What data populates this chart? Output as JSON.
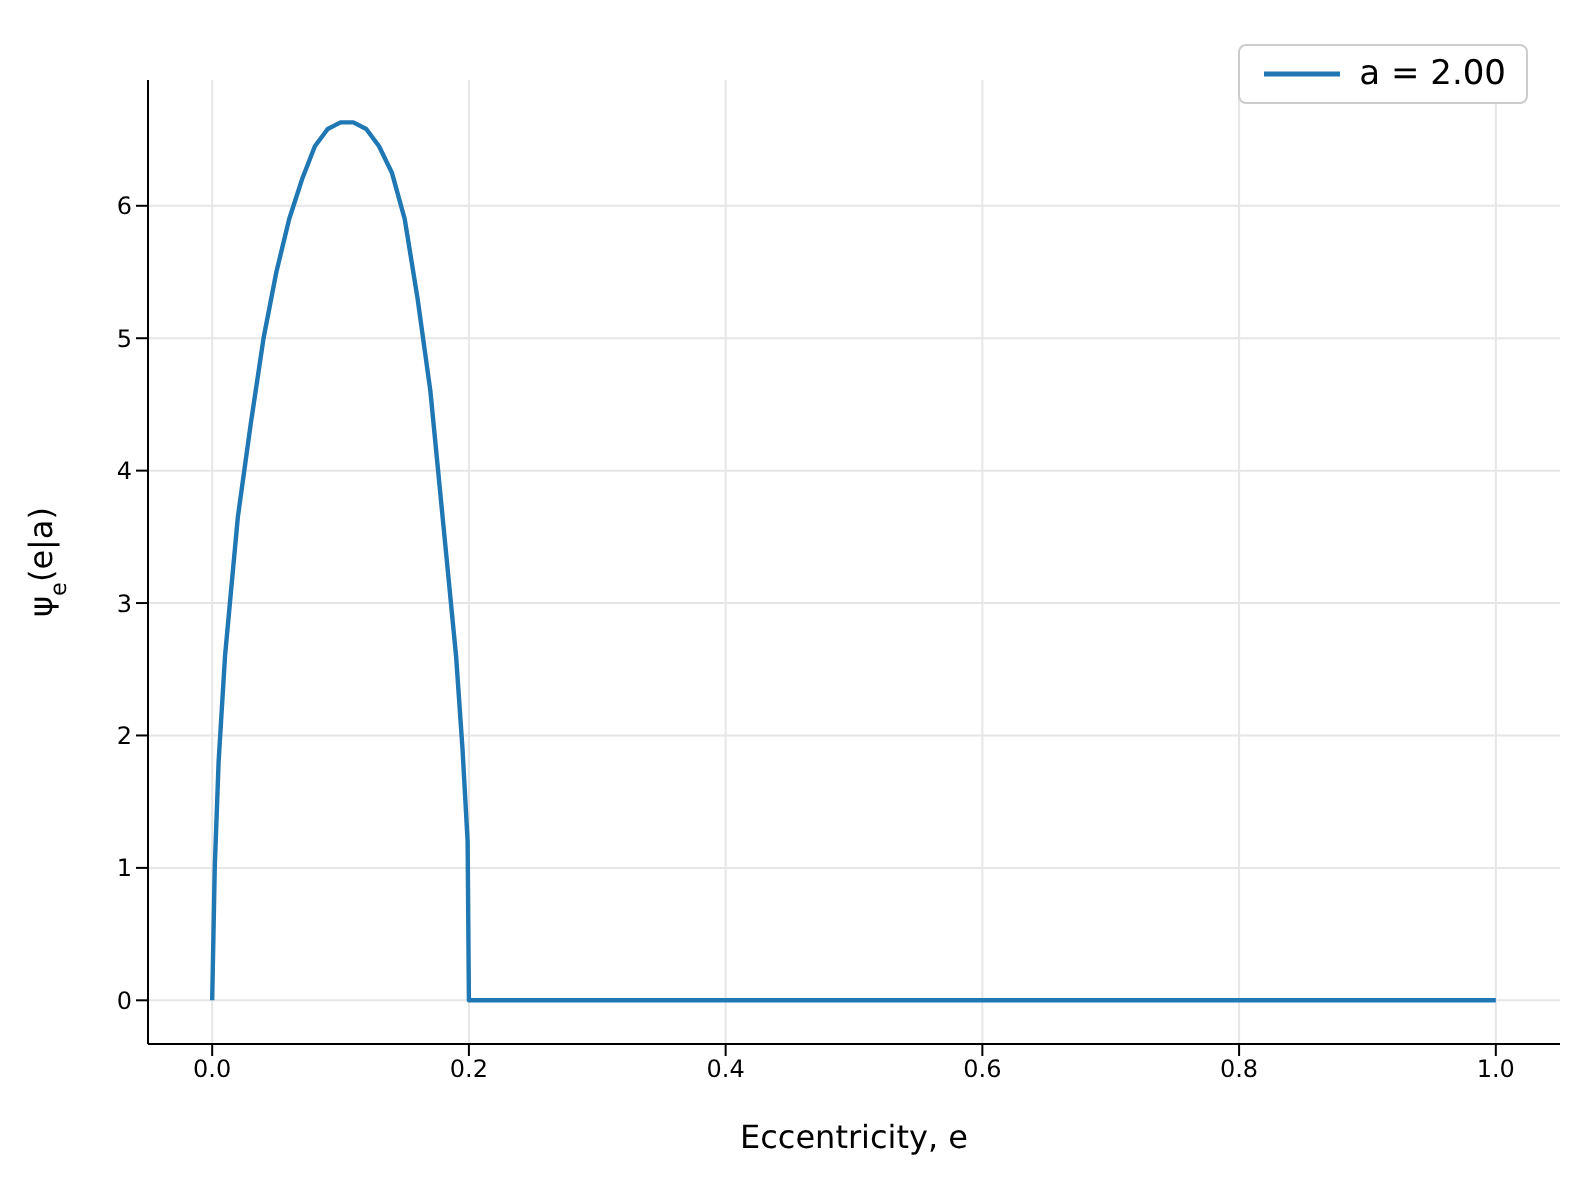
{
  "chart_data": {
    "type": "line",
    "xlabel": "Eccentricity, e",
    "ylabel": "ψ$_{e}$(e|a)",
    "xlim": [
      -0.05,
      1.05
    ],
    "ylim": [
      -0.33,
      6.95
    ],
    "xticks": [
      {
        "value": 0,
        "label": "0.0"
      },
      {
        "value": 0.2,
        "label": "0.2"
      },
      {
        "value": 0.4,
        "label": "0.4"
      },
      {
        "value": 0.6,
        "label": "0.6"
      },
      {
        "value": 0.8,
        "label": "0.8"
      },
      {
        "value": 1,
        "label": "1.0"
      }
    ],
    "yticks": [
      0,
      1,
      2,
      3,
      4,
      5,
      6
    ],
    "grid": true,
    "legend": "top right",
    "marker": "none",
    "line_style": "solid",
    "series": [
      {
        "name": "a = 2.00",
        "color": "#1f77b4",
        "x": [
          0,
          0.002,
          0.005,
          0.01,
          0.02,
          0.03,
          0.04,
          0.05,
          0.06,
          0.07,
          0.08,
          0.09,
          0.1,
          0.11,
          0.12,
          0.13,
          0.14,
          0.15,
          0.16,
          0.17,
          0.18,
          0.19,
          0.195,
          0.199,
          0.2,
          0.4,
          0.6,
          0.8,
          1.0
        ],
        "values": [
          0,
          1.0,
          1.8,
          2.6,
          3.65,
          4.35,
          5.0,
          5.5,
          5.9,
          6.2,
          6.45,
          6.58,
          6.63,
          6.63,
          6.58,
          6.45,
          6.25,
          5.9,
          5.3,
          4.6,
          3.6,
          2.6,
          1.9,
          1.2,
          0,
          0,
          0,
          0,
          0
        ]
      }
    ]
  }
}
